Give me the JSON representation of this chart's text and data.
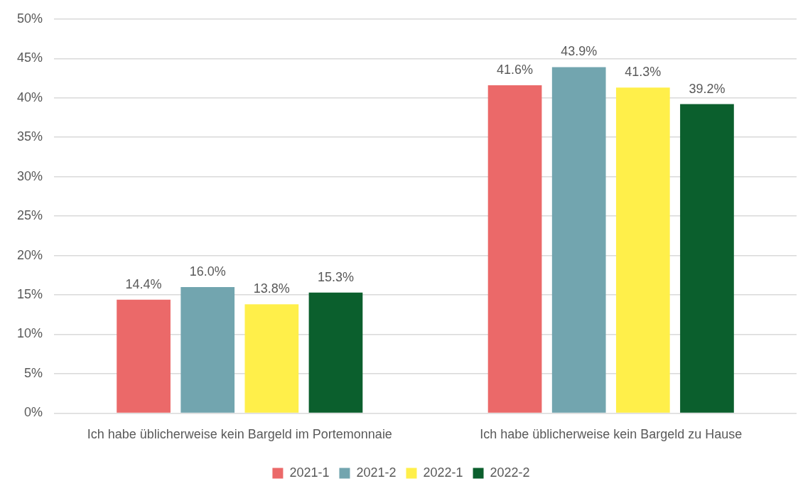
{
  "chart_data": {
    "type": "bar",
    "categories": [
      "Ich habe üblicherweise kein Bargeld im Portemonnaie",
      "Ich habe üblicherweise kein Bargeld zu Hause"
    ],
    "series": [
      {
        "name": "2021-1",
        "color": "#eb6969",
        "values": [
          14.4,
          41.6
        ],
        "value_labels": [
          "14.4%",
          "41.6%"
        ]
      },
      {
        "name": "2021-2",
        "color": "#72a5af",
        "values": [
          16.0,
          43.9
        ],
        "value_labels": [
          "16.0%",
          "43.9%"
        ]
      },
      {
        "name": "2022-1",
        "color": "#ffef4a",
        "values": [
          13.8,
          41.3
        ],
        "value_labels": [
          "13.8%",
          "41.3%"
        ]
      },
      {
        "name": "2022-2",
        "color": "#0b5f2d",
        "values": [
          15.3,
          39.2
        ],
        "value_labels": [
          "15.3%",
          "39.2%"
        ]
      }
    ],
    "ylim": [
      0,
      50
    ],
    "yticks": [
      {
        "value": 0,
        "label": "0%"
      },
      {
        "value": 5,
        "label": "5%"
      },
      {
        "value": 10,
        "label": "10%"
      },
      {
        "value": 15,
        "label": "15%"
      },
      {
        "value": 20,
        "label": "20%"
      },
      {
        "value": 25,
        "label": "25%"
      },
      {
        "value": 30,
        "label": "30%"
      },
      {
        "value": 35,
        "label": "35%"
      },
      {
        "value": 40,
        "label": "40%"
      },
      {
        "value": 45,
        "label": "45%"
      },
      {
        "value": 50,
        "label": "50%"
      }
    ],
    "grid": "y",
    "legend": "bottom"
  }
}
